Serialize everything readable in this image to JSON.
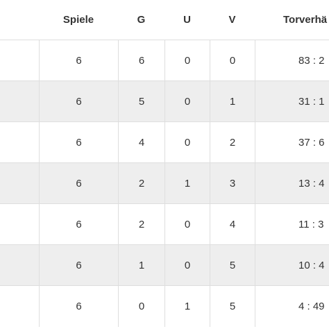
{
  "columns": {
    "spiele": "Spiele",
    "g": "G",
    "u": "U",
    "v": "V",
    "tore": "Torverhä"
  },
  "rows": [
    {
      "spiele": "6",
      "g": "6",
      "u": "0",
      "v": "0",
      "tore": "83 : 2"
    },
    {
      "spiele": "6",
      "g": "5",
      "u": "0",
      "v": "1",
      "tore": "31 : 1"
    },
    {
      "spiele": "6",
      "g": "4",
      "u": "0",
      "v": "2",
      "tore": "37 : 6"
    },
    {
      "spiele": "6",
      "g": "2",
      "u": "1",
      "v": "3",
      "tore": "13 : 4"
    },
    {
      "spiele": "6",
      "g": "2",
      "u": "0",
      "v": "4",
      "tore": "11 : 3"
    },
    {
      "spiele": "6",
      "g": "1",
      "u": "0",
      "v": "5",
      "tore": "10 : 4"
    },
    {
      "spiele": "6",
      "g": "0",
      "u": "1",
      "v": "5",
      "tore": "4 : 49"
    }
  ],
  "colors": {
    "header_bg": "#ffffff",
    "row_alt_bg": "#eeeeee",
    "border": "#dedede",
    "text": "#333333"
  }
}
